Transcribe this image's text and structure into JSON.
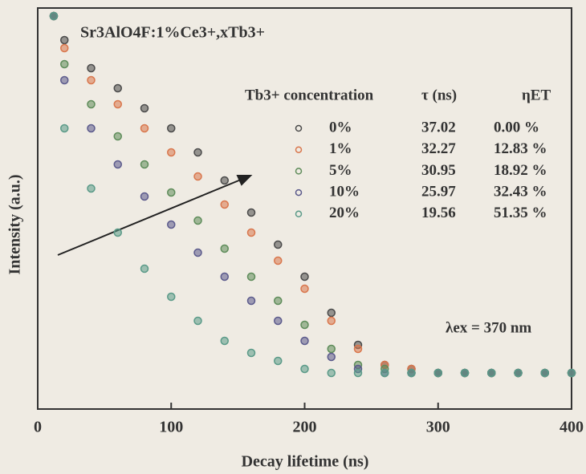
{
  "chart_data": {
    "type": "scatter",
    "title": "Sr3AlO4F:1%Ce3+,xTb3+",
    "x_label": "Decay lifetime (ns)",
    "y_label": "Intensity (a.u.)",
    "annotation": "λex = 370 nm",
    "legend_headers": [
      "Tb3+ concentration",
      "τ (ns)",
      "ηET"
    ],
    "xlim": [
      0,
      400
    ],
    "xticks": [
      0,
      100,
      200,
      300,
      400
    ],
    "ylim": [
      0,
      1
    ],
    "x": [
      12,
      20,
      40,
      60,
      80,
      100,
      120,
      140,
      160,
      180,
      200,
      220,
      240,
      260,
      280,
      300,
      320,
      340,
      360,
      380,
      400
    ],
    "series": [
      {
        "name": "0%",
        "color": "#4a4a4a",
        "tau": 37.02,
        "eta": "0.00 %",
        "values": [
          0.98,
          0.92,
          0.85,
          0.8,
          0.75,
          0.7,
          0.64,
          0.57,
          0.49,
          0.41,
          0.33,
          0.24,
          0.16,
          0.11,
          0.1,
          0.09,
          0.09,
          0.09,
          0.09,
          0.09,
          0.09
        ]
      },
      {
        "name": "1%",
        "color": "#d9764c",
        "tau": 32.27,
        "eta": "12.83 %",
        "values": [
          0.98,
          0.9,
          0.82,
          0.76,
          0.7,
          0.64,
          0.58,
          0.51,
          0.44,
          0.37,
          0.3,
          0.22,
          0.15,
          0.11,
          0.1,
          0.09,
          0.09,
          0.09,
          0.09,
          0.09,
          0.09
        ]
      },
      {
        "name": "5%",
        "color": "#5e8c5a",
        "tau": 30.95,
        "eta": "18.92 %",
        "values": [
          0.98,
          0.86,
          0.76,
          0.68,
          0.61,
          0.54,
          0.47,
          0.4,
          0.33,
          0.27,
          0.21,
          0.15,
          0.11,
          0.1,
          0.09,
          0.09,
          0.09,
          0.09,
          0.09,
          0.09,
          0.09
        ]
      },
      {
        "name": "10%",
        "color": "#5b5a8c",
        "tau": 25.97,
        "eta": "32.43 %",
        "values": [
          0.98,
          0.82,
          0.7,
          0.61,
          0.53,
          0.46,
          0.39,
          0.33,
          0.27,
          0.22,
          0.17,
          0.13,
          0.1,
          0.09,
          0.09,
          0.09,
          0.09,
          0.09,
          0.09,
          0.09,
          0.09
        ]
      },
      {
        "name": "20%",
        "color": "#5a9a88",
        "tau": 19.56,
        "eta": "51.35 %",
        "values": [
          0.98,
          0.7,
          0.55,
          0.44,
          0.35,
          0.28,
          0.22,
          0.17,
          0.14,
          0.12,
          0.1,
          0.09,
          0.09,
          0.09,
          0.09,
          0.09,
          0.09,
          0.09,
          0.09,
          0.09,
          0.09
        ]
      }
    ]
  }
}
